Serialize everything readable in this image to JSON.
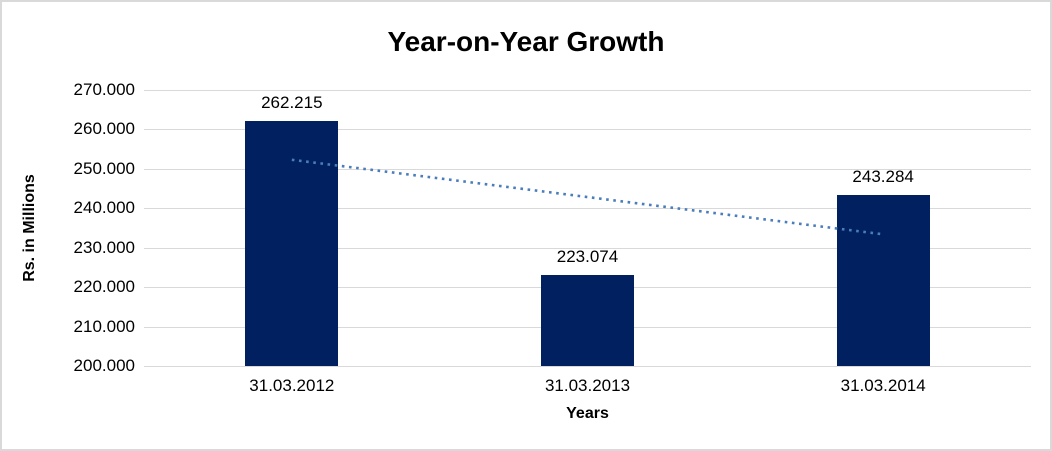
{
  "chart_data": {
    "type": "bar",
    "title": "Year-on-Year Growth",
    "categories": [
      "31.03.2012",
      "31.03.2013",
      "31.03.2014"
    ],
    "values": [
      262.215,
      223.074,
      243.284
    ],
    "value_labels": [
      "262.215",
      "223.074",
      "243.284"
    ],
    "xlabel": "Years",
    "ylabel": "Rs. in Millions",
    "ylim": [
      200,
      270
    ],
    "ytick_step": 10,
    "ytick_labels": [
      "270.000",
      "260.000",
      "250.000",
      "240.000",
      "230.000",
      "220.000",
      "210.000",
      "200.000"
    ],
    "grid": true,
    "legend": "none",
    "trendline": {
      "shape": "linear",
      "style": "dotted",
      "start_value": 252.3,
      "end_value": 233.4
    },
    "colors": {
      "bar": "#002060",
      "trendline": "#4a7ebb",
      "gridline": "#d9d9d9",
      "frame_border": "#d9d9d9",
      "background": "#ffffff",
      "text": "#000000"
    }
  }
}
